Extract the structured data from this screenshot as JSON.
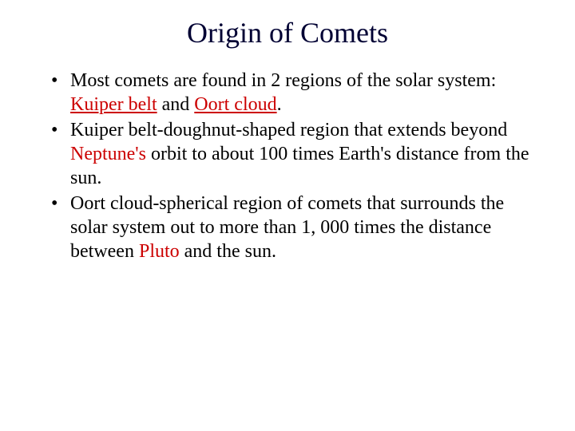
{
  "title": "Origin of Comets",
  "bullets": [
    {
      "pre": "Most comets are found in 2 regions of the solar system: ",
      "kw1": "Kuiper belt",
      "mid": " and ",
      "kw2": "Oort cloud",
      "post": "."
    },
    {
      "pre": "Kuiper belt-doughnut-shaped region that extends beyond ",
      "kw1": "Neptune's",
      "post": " orbit to about 100 times Earth's distance from the sun."
    },
    {
      "pre": "Oort cloud-spherical region of comets that surrounds the solar system out to more than 1, 000 times the distance between ",
      "kw1": "Pluto",
      "post": " and the sun."
    }
  ],
  "colors": {
    "title_color": "#000033",
    "text_color": "#000000",
    "keyword_color": "#cc0000",
    "background": "#ffffff"
  },
  "fonts": {
    "family": "Times New Roman",
    "title_size": 36,
    "body_size": 24
  }
}
